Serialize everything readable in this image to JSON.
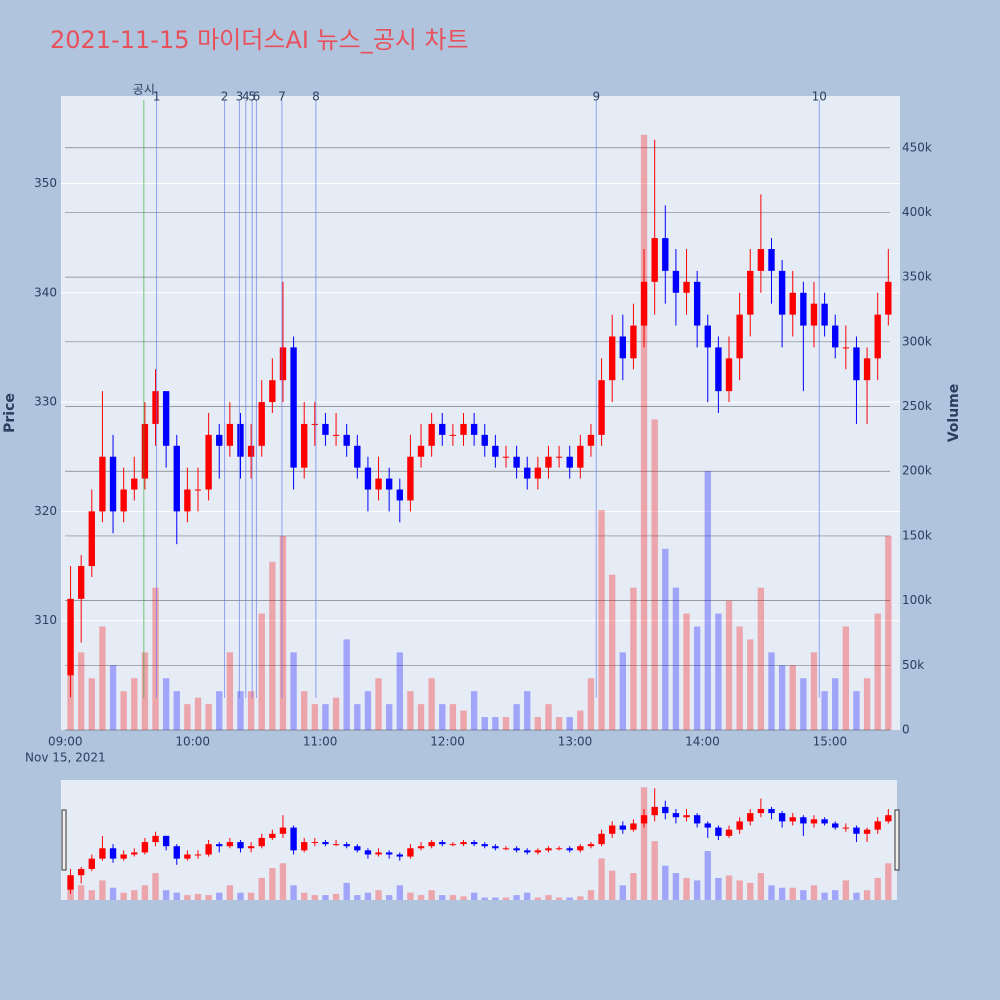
{
  "chart_data": {
    "type": "candlestick",
    "title": "2021-11-15 마이더스AI 뉴스_공시 차트",
    "ylabel": "Price",
    "y2label": "Volume",
    "date_label": "Nov 15, 2021",
    "increasing_color": "#ff0000",
    "decreasing_color": "#0000ff",
    "grid": true,
    "x": [
      "09:00",
      "09:05",
      "09:10",
      "09:15",
      "09:20",
      "09:25",
      "09:30",
      "09:35",
      "09:40",
      "09:45",
      "09:50",
      "09:55",
      "10:00",
      "10:05",
      "10:10",
      "10:15",
      "10:20",
      "10:25",
      "10:30",
      "10:35",
      "10:40",
      "10:45",
      "10:50",
      "10:55",
      "11:00",
      "11:05",
      "11:10",
      "11:15",
      "11:20",
      "11:25",
      "11:30",
      "11:35",
      "11:40",
      "11:45",
      "11:50",
      "11:55",
      "12:00",
      "12:05",
      "12:10",
      "12:15",
      "12:20",
      "12:25",
      "12:30",
      "12:35",
      "12:40",
      "12:45",
      "12:50",
      "12:55",
      "13:00",
      "13:05",
      "13:10",
      "13:15",
      "13:20",
      "13:25",
      "13:30",
      "13:35",
      "13:40",
      "13:45",
      "13:50",
      "13:55",
      "14:00",
      "14:05",
      "14:10",
      "14:15",
      "14:20",
      "14:25",
      "14:30",
      "14:35",
      "14:40",
      "14:45",
      "14:50",
      "14:55",
      "15:00",
      "15:05",
      "15:10",
      "15:15",
      "15:20",
      "15:25"
    ],
    "open": [
      305,
      312,
      315,
      320,
      325,
      320,
      322,
      323,
      328,
      331,
      326,
      320,
      322,
      322,
      327,
      326,
      328,
      325,
      326,
      330,
      332,
      335,
      324,
      328,
      328,
      327,
      327,
      326,
      324,
      322,
      323,
      322,
      321,
      325,
      326,
      328,
      327,
      327,
      328,
      327,
      326,
      325,
      325,
      324,
      323,
      324,
      325,
      325,
      324,
      326,
      327,
      332,
      336,
      334,
      337,
      341,
      345,
      342,
      340,
      341,
      337,
      335,
      331,
      334,
      338,
      342,
      344,
      342,
      338,
      340,
      337,
      339,
      337,
      335,
      335,
      332,
      334,
      338
    ],
    "high": [
      315,
      316,
      322,
      331,
      327,
      324,
      325,
      330,
      333,
      331,
      327,
      324,
      324,
      329,
      328,
      330,
      329,
      328,
      332,
      334,
      341,
      336,
      330,
      330,
      329,
      329,
      328,
      327,
      325,
      325,
      324,
      323,
      327,
      328,
      329,
      329,
      328,
      329,
      329,
      328,
      327,
      326,
      326,
      325,
      325,
      326,
      326,
      326,
      327,
      328,
      334,
      338,
      338,
      339,
      344,
      354,
      348,
      344,
      344,
      342,
      338,
      336,
      336,
      340,
      344,
      349,
      345,
      343,
      342,
      341,
      341,
      340,
      338,
      337,
      336,
      335,
      340,
      344
    ],
    "low": [
      303,
      308,
      314,
      319,
      318,
      319,
      321,
      322,
      326,
      324,
      317,
      319,
      320,
      321,
      323,
      325,
      323,
      323,
      325,
      329,
      330,
      322,
      323,
      326,
      326,
      326,
      325,
      323,
      320,
      321,
      320,
      319,
      320,
      324,
      325,
      326,
      326,
      326,
      326,
      325,
      324,
      324,
      323,
      322,
      322,
      323,
      324,
      323,
      323,
      325,
      326,
      330,
      332,
      333,
      335,
      338,
      339,
      337,
      338,
      335,
      330,
      329,
      330,
      332,
      336,
      340,
      339,
      335,
      336,
      331,
      335,
      336,
      334,
      333,
      328,
      328,
      332,
      337
    ],
    "close": [
      312,
      315,
      320,
      325,
      320,
      322,
      323,
      328,
      331,
      326,
      320,
      322,
      322,
      327,
      326,
      328,
      325,
      326,
      330,
      332,
      335,
      324,
      328,
      328,
      327,
      327,
      326,
      324,
      322,
      323,
      322,
      321,
      325,
      326,
      328,
      327,
      327,
      328,
      327,
      326,
      325,
      325,
      324,
      323,
      324,
      325,
      325,
      324,
      326,
      327,
      332,
      336,
      334,
      337,
      341,
      345,
      342,
      340,
      341,
      337,
      335,
      331,
      334,
      338,
      342,
      344,
      342,
      338,
      340,
      337,
      339,
      337,
      335,
      335,
      332,
      334,
      338,
      341
    ],
    "volume": [
      90000,
      60000,
      40000,
      80000,
      50000,
      30000,
      40000,
      60000,
      110000,
      40000,
      30000,
      20000,
      25000,
      20000,
      30000,
      60000,
      30000,
      30000,
      90000,
      130000,
      150000,
      60000,
      30000,
      20000,
      20000,
      25000,
      70000,
      20000,
      30000,
      40000,
      20000,
      60000,
      30000,
      20000,
      40000,
      20000,
      20000,
      15000,
      30000,
      10000,
      10000,
      10000,
      20000,
      30000,
      10000,
      20000,
      10000,
      10000,
      15000,
      40000,
      170000,
      120000,
      60000,
      110000,
      460000,
      240000,
      140000,
      110000,
      90000,
      80000,
      200000,
      90000,
      100000,
      80000,
      70000,
      110000,
      60000,
      50000,
      50000,
      40000,
      60000,
      30000,
      40000,
      80000,
      30000,
      40000,
      90000,
      150000
    ],
    "xlim": [
      "08:58",
      "15:33"
    ],
    "xticks": [
      "09:00",
      "10:00",
      "11:00",
      "12:00",
      "13:00",
      "14:00",
      "15:00"
    ],
    "ylim": [
      300,
      358
    ],
    "yticks": [
      310,
      320,
      330,
      340,
      350
    ],
    "y2lim": [
      0,
      490000
    ],
    "y2ticks": [
      0,
      {
        "value": 50000,
        "label": "50k"
      },
      {
        "value": 100000,
        "label": "100k"
      },
      {
        "value": 150000,
        "label": "150k"
      },
      {
        "value": 200000,
        "label": "200k"
      },
      {
        "value": 250000,
        "label": "250k"
      },
      {
        "value": 300000,
        "label": "300k"
      },
      {
        "value": 350000,
        "label": "350k"
      },
      {
        "value": 400000,
        "label": "400k"
      },
      {
        "value": 450000,
        "label": "450k"
      }
    ],
    "markers": [
      {
        "label": "공시",
        "x": "09:37",
        "color": "#2ca02c"
      },
      {
        "label": "1",
        "x": "09:43",
        "color": "#5a6cf0"
      },
      {
        "label": "2",
        "x": "10:15",
        "color": "#5a6cf0"
      },
      {
        "label": "3",
        "x": "10:22",
        "color": "#5a6cf0"
      },
      {
        "label": "4",
        "x": "10:25",
        "color": "#5a6cf0"
      },
      {
        "label": "5",
        "x": "10:28",
        "color": "#5a6cf0"
      },
      {
        "label": "6",
        "x": "10:30",
        "color": "#5a6cf0"
      },
      {
        "label": "7",
        "x": "10:42",
        "color": "#5a6cf0"
      },
      {
        "label": "8",
        "x": "10:58",
        "color": "#5a6cf0"
      },
      {
        "label": "9",
        "x": "13:10",
        "color": "#5a6cf0"
      },
      {
        "label": "10",
        "x": "14:55",
        "color": "#5a6cf0"
      }
    ]
  }
}
